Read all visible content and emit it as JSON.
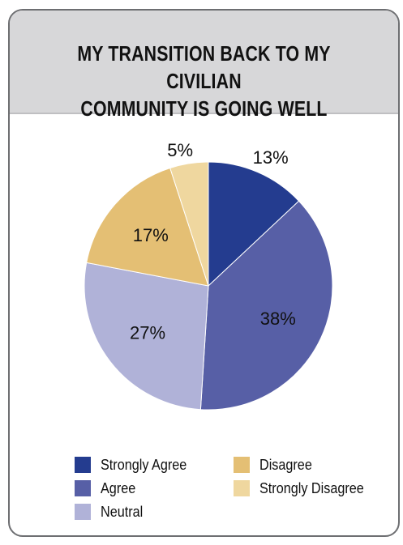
{
  "chart_data": {
    "type": "pie",
    "title_lines": [
      "MY TRANSITION BACK TO MY CIVILIAN",
      "COMMUNITY IS GOING WELL"
    ],
    "categories": [
      "Strongly Agree",
      "Agree",
      "Neutral",
      "Disagree",
      "Strongly Disagree"
    ],
    "values": [
      13,
      38,
      27,
      17,
      5
    ],
    "labels": [
      "13%",
      "38%",
      "27%",
      "17%",
      "5%"
    ],
    "colors": [
      "#243c8f",
      "#575fa6",
      "#b0b2d8",
      "#e4bf74",
      "#efd79f"
    ],
    "legend_placement": "bottom"
  }
}
